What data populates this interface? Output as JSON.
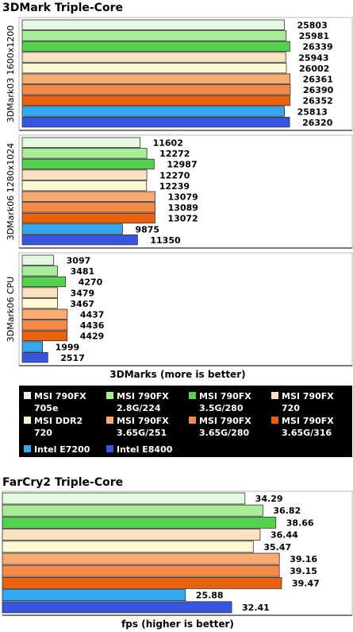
{
  "colors": {
    "MSI 790FX 705e": "#e4fbe1",
    "MSI 790FX 2.8G/224": "#a8ee98",
    "MSI 790FX 3.5G/280": "#55d14f",
    "MSI 790FX 720": "#fde0c0",
    "MSI DDR2 720": "#fff8d2",
    "MSI 790FX 3.65G/251": "#fbaa72",
    "MSI 790FX 3.65G/280": "#f48a4a",
    "MSI 790FX 3.65G/316": "#e8620f",
    "Intel E7200": "#33a8ee",
    "Intel E8400": "#3756dd"
  },
  "legend": {
    "items": [
      {
        "line1": "MSI 790FX",
        "line2": "705e",
        "series": "MSI 790FX 705e"
      },
      {
        "line1": "MSI 790FX",
        "line2": "2.8G/224",
        "series": "MSI 790FX 2.8G/224"
      },
      {
        "line1": "MSI 790FX",
        "line2": "3.5G/280",
        "series": "MSI 790FX 3.5G/280"
      },
      {
        "line1": "MSI 790FX",
        "line2": "720",
        "series": "MSI 790FX 720"
      },
      {
        "line1": "MSI DDR2",
        "line2": "720",
        "series": "MSI DDR2 720"
      },
      {
        "line1": "MSI 790FX",
        "line2": "3.65G/251",
        "series": "MSI 790FX 3.65G/251"
      },
      {
        "line1": "MSI 790FX",
        "line2": "3.65G/280",
        "series": "MSI 790FX 3.65G/280"
      },
      {
        "line1": "MSI 790FX",
        "line2": "3.65G/316",
        "series": "MSI 790FX 3.65G/316"
      },
      {
        "line1": "Intel E7200",
        "line2": "",
        "series": "Intel E7200"
      },
      {
        "line1": "Intel E8400",
        "line2": "",
        "series": "Intel E8400"
      }
    ]
  },
  "chart_data": [
    {
      "type": "bar",
      "orientation": "horizontal",
      "title": "3DMark Triple-Core",
      "xlabel": "3DMarks (more is better)",
      "groups": [
        {
          "category": "3DMark03 1600x1200",
          "series": [
            "MSI 790FX 705e",
            "MSI 790FX 2.8G/224",
            "MSI 790FX 3.5G/280",
            "MSI 790FX 720",
            "MSI DDR2 720",
            "MSI 790FX 3.65G/251",
            "MSI 790FX 3.65G/280",
            "MSI 790FX 3.65G/316",
            "Intel E7200",
            "Intel E8400"
          ],
          "values": [
            25803,
            25981,
            26339,
            25943,
            26002,
            26361,
            26390,
            26352,
            25813,
            26320
          ]
        },
        {
          "category": "3DMark06 1280x1024",
          "series": [
            "MSI 790FX 705e",
            "MSI 790FX 2.8G/224",
            "MSI 790FX 3.5G/280",
            "MSI 790FX 720",
            "MSI DDR2 720",
            "MSI 790FX 3.65G/251",
            "MSI 790FX 3.65G/280",
            "MSI 790FX 3.65G/316",
            "Intel E7200",
            "Intel E8400"
          ],
          "values": [
            11602,
            12272,
            12987,
            12270,
            12239,
            13079,
            13089,
            13072,
            9875,
            11350
          ]
        },
        {
          "category": "3DMark06 CPU",
          "series": [
            "MSI 790FX 705e",
            "MSI 790FX 2.8G/224",
            "MSI 790FX 3.5G/280",
            "MSI 790FX 720",
            "MSI DDR2 720",
            "MSI 790FX 3.65G/251",
            "MSI 790FX 3.65G/280",
            "MSI 790FX 3.65G/316",
            "Intel E7200",
            "Intel E8400"
          ],
          "values": [
            3097,
            3481,
            4270,
            3479,
            3467,
            4437,
            4436,
            4429,
            1999,
            2517
          ]
        }
      ]
    },
    {
      "type": "bar",
      "orientation": "horizontal",
      "title": "FarCry2 Triple-Core",
      "xlabel": "fps (higher is better)",
      "series": [
        "MSI 790FX 705e",
        "MSI 790FX 2.8G/224",
        "MSI 790FX 3.5G/280",
        "MSI 790FX 720",
        "MSI DDR2 720",
        "MSI 790FX 3.65G/251",
        "MSI 790FX 3.65G/280",
        "MSI 790FX 3.65G/316",
        "Intel E7200",
        "Intel E8400"
      ],
      "values": [
        34.29,
        36.82,
        38.66,
        36.44,
        35.47,
        39.16,
        39.15,
        39.47,
        25.88,
        32.41
      ]
    }
  ]
}
